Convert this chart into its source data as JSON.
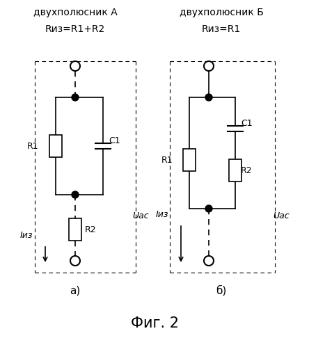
{
  "title": "Фиг. 2",
  "title_fontsize": 15,
  "background_color": "#ffffff",
  "fig_width": 4.44,
  "fig_height": 4.99,
  "dpi": 100,
  "label_a_title1": "двухполюсник А",
  "label_a_title2": "Rиз=R1+R2",
  "label_b_title1": "двухполюсник Б",
  "label_b_title2": "Rиз=R1",
  "label_a": "а)",
  "label_b": "б)",
  "uac_label": "Uac",
  "iiz_label": "Iиз"
}
